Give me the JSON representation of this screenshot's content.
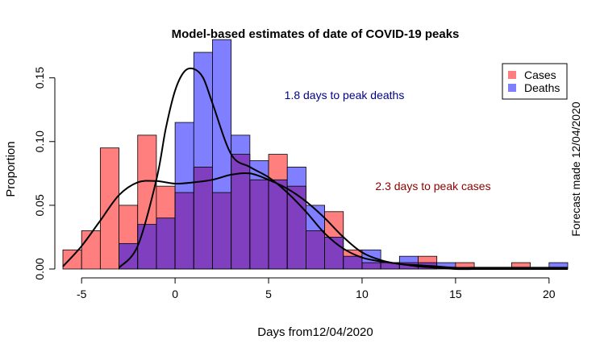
{
  "chart_data": {
    "type": "bar",
    "title": "Model-based estimates of date of COVID-19 peaks",
    "xlabel": "Days from12/04/2020",
    "ylabel": "Proportion",
    "side_note": "Forecast made 12/04/2020",
    "xlim": [
      -6,
      21
    ],
    "ylim": [
      0,
      0.17
    ],
    "x_ticks": [
      -5,
      0,
      5,
      10,
      15,
      20
    ],
    "y_ticks": [
      0.0,
      0.05,
      0.1,
      0.15
    ],
    "y_tick_labels": [
      "0.00",
      "0.05",
      "0.10",
      "0.15"
    ],
    "bin_width": 1,
    "bin_starts": [
      -6,
      -5,
      -4,
      -3,
      -2,
      -1,
      0,
      1,
      2,
      3,
      4,
      5,
      6,
      7,
      8,
      9,
      10,
      11,
      12,
      13,
      14,
      15,
      16,
      17,
      18,
      19,
      20
    ],
    "series": [
      {
        "name": "Cases",
        "color": "#ff7f7f",
        "values": [
          0.015,
          0.03,
          0.095,
          0.05,
          0.105,
          0.065,
          0.06,
          0.08,
          0.06,
          0.09,
          0.07,
          0.09,
          0.065,
          0.03,
          0.045,
          0.015,
          0.005,
          0.005,
          0.005,
          0.01,
          0.0,
          0.005,
          0.0,
          0.0,
          0.005,
          0.0,
          0.0
        ],
        "annotation": "2.3 days to peak cases",
        "annotation_color": "#8b0000"
      },
      {
        "name": "Deaths",
        "color": "#7f7fff",
        "values": [
          0.0,
          0.0,
          0.0,
          0.02,
          0.035,
          0.04,
          0.115,
          0.17,
          0.18,
          0.105,
          0.085,
          0.07,
          0.08,
          0.05,
          0.025,
          0.01,
          0.015,
          0.005,
          0.01,
          0.005,
          0.005,
          0.0,
          0.0,
          0.0,
          0.0,
          0.0,
          0.005
        ],
        "annotation": "1.8 days to peak deaths",
        "annotation_color": "#00008b"
      }
    ],
    "overlap_color": "#7f3fbf",
    "density_curves": [
      {
        "series": "Cases",
        "x": [
          -6.0,
          -5.0,
          -4.0,
          -3.0,
          -2.0,
          -1.0,
          0.0,
          1.0,
          2.0,
          3.0,
          4.0,
          5.0,
          6.0,
          7.0,
          8.0,
          9.0,
          10.0,
          11.0,
          12.0,
          13.0,
          14.0,
          15.0,
          16.0,
          17.0,
          18.0,
          19.0,
          20.0,
          21.0
        ],
        "y": [
          0.002,
          0.018,
          0.038,
          0.058,
          0.068,
          0.069,
          0.067,
          0.068,
          0.07,
          0.074,
          0.075,
          0.07,
          0.063,
          0.053,
          0.04,
          0.025,
          0.013,
          0.007,
          0.004,
          0.003,
          0.002,
          0.001,
          0.001,
          0.001,
          0.001,
          0.001,
          0.001,
          0.001
        ]
      },
      {
        "series": "Deaths",
        "x": [
          -3.0,
          -2.0,
          -1.0,
          -0.5,
          0.0,
          0.5,
          1.0,
          1.5,
          2.0,
          3.0,
          4.0,
          5.0,
          6.0,
          7.0,
          8.0,
          9.0,
          10.0,
          11.0,
          12.0,
          13.0,
          14.0,
          15.0,
          16.0,
          17.0,
          18.0,
          19.0,
          20.0,
          21.0
        ],
        "y": [
          0.001,
          0.018,
          0.07,
          0.11,
          0.14,
          0.155,
          0.157,
          0.15,
          0.13,
          0.09,
          0.08,
          0.072,
          0.06,
          0.045,
          0.028,
          0.016,
          0.009,
          0.006,
          0.004,
          0.002,
          0.001,
          0.0,
          0.0,
          0.0,
          0.0,
          0.0,
          0.0,
          0.0
        ]
      }
    ],
    "legend_placement": "top-right",
    "grid": false
  }
}
